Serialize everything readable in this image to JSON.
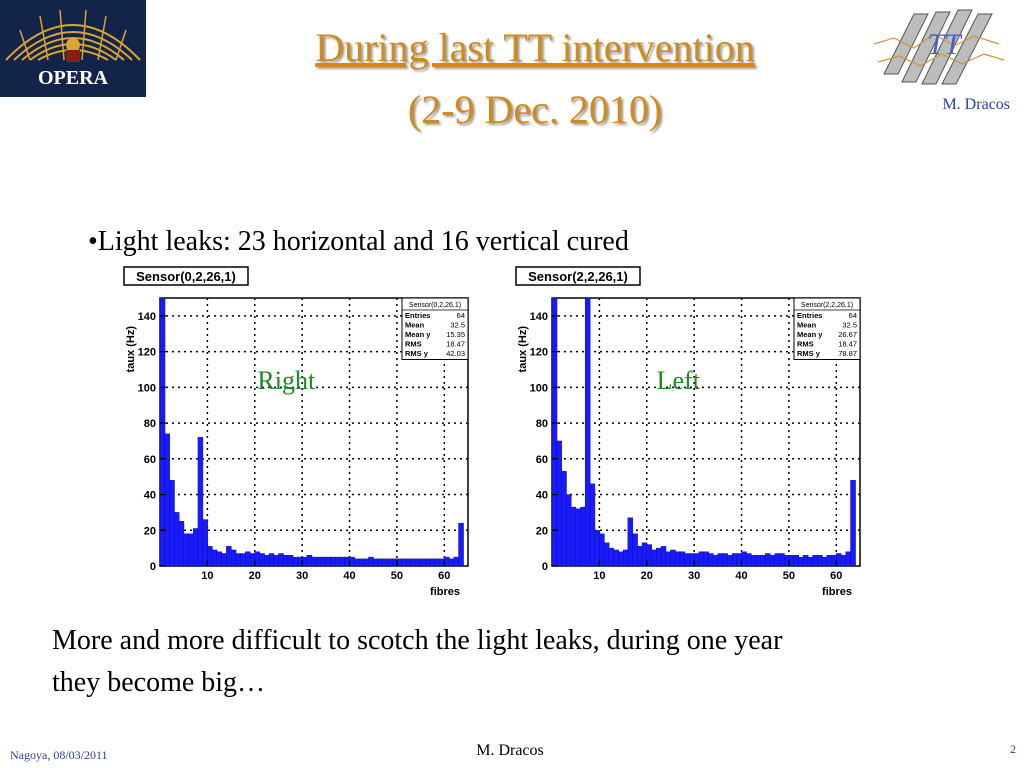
{
  "header": {
    "title_line1": "During last TT intervention",
    "title_line2": "(2-9 Dec. 2010)",
    "author": "M. Dracos",
    "opera_logo_text": "OPERA",
    "tt_logo_text": "TT"
  },
  "colors": {
    "title": "#d08a1e",
    "accent_blue": "#2a3ea8",
    "histogram_fill": "#1a1aff",
    "label_green": "#1f8a1f"
  },
  "body": {
    "bullet": "•Light leaks: 23 horizontal and 16 vertical cured",
    "conclusion_line1": "More and more difficult to scotch the light leaks, during one year",
    "conclusion_line2": "they become big…"
  },
  "chart_data": [
    {
      "type": "bar",
      "title": "Sensor(0,2,26,1)",
      "panel_label": "Right",
      "xlabel": "fibres",
      "ylabel": "taux (Hz)",
      "xlim": [
        0,
        65
      ],
      "ylim": [
        0,
        150
      ],
      "xticks": [
        10,
        20,
        30,
        40,
        50,
        60
      ],
      "yticks": [
        0,
        20,
        40,
        60,
        80,
        100,
        120,
        140
      ],
      "grid": true,
      "stats": {
        "name": "Sensor(0,2,26,1)",
        "rows": [
          [
            "Entries",
            "64"
          ],
          [
            "Mean",
            "32.5"
          ],
          [
            "Mean y",
            "15.35"
          ],
          [
            "RMS",
            "18.47"
          ],
          [
            "RMS y",
            "42.03"
          ]
        ]
      },
      "values": [
        150,
        74,
        48,
        30,
        25,
        18,
        18,
        21,
        72,
        26,
        11,
        9,
        8,
        7,
        11,
        9,
        7,
        7,
        8,
        7,
        8,
        7,
        6,
        7,
        6,
        7,
        6,
        6,
        5,
        5,
        5,
        6,
        5,
        5,
        5,
        5,
        5,
        5,
        5,
        5,
        5,
        4,
        4,
        4,
        5,
        4,
        4,
        4,
        4,
        4,
        4,
        4,
        4,
        4,
        4,
        4,
        4,
        4,
        4,
        4,
        5,
        4,
        5,
        24
      ]
    },
    {
      "type": "bar",
      "title": "Sensor(2,2,26,1)",
      "panel_label": "Left",
      "xlabel": "fibres",
      "ylabel": "taux (Hz)",
      "xlim": [
        0,
        65
      ],
      "ylim": [
        0,
        150
      ],
      "xticks": [
        10,
        20,
        30,
        40,
        50,
        60
      ],
      "yticks": [
        0,
        20,
        40,
        60,
        80,
        100,
        120,
        140
      ],
      "grid": true,
      "stats": {
        "name": "Sensor(2,2,26,1)",
        "rows": [
          [
            "Entries",
            "64"
          ],
          [
            "Mean",
            "32.5"
          ],
          [
            "Mean y",
            "26.67"
          ],
          [
            "RMS",
            "18.47"
          ],
          [
            "RMS y",
            "78.87"
          ]
        ]
      },
      "values": [
        150,
        70,
        53,
        40,
        33,
        32,
        33,
        150,
        46,
        20,
        18,
        13,
        10,
        9,
        8,
        9,
        27,
        18,
        11,
        13,
        12,
        9,
        10,
        11,
        8,
        9,
        8,
        8,
        7,
        7,
        7,
        8,
        8,
        7,
        6,
        7,
        7,
        6,
        7,
        7,
        8,
        7,
        6,
        6,
        6,
        7,
        6,
        7,
        7,
        6,
        6,
        6,
        5,
        6,
        5,
        6,
        6,
        5,
        6,
        6,
        7,
        6,
        8,
        48
      ]
    }
  ]
}
